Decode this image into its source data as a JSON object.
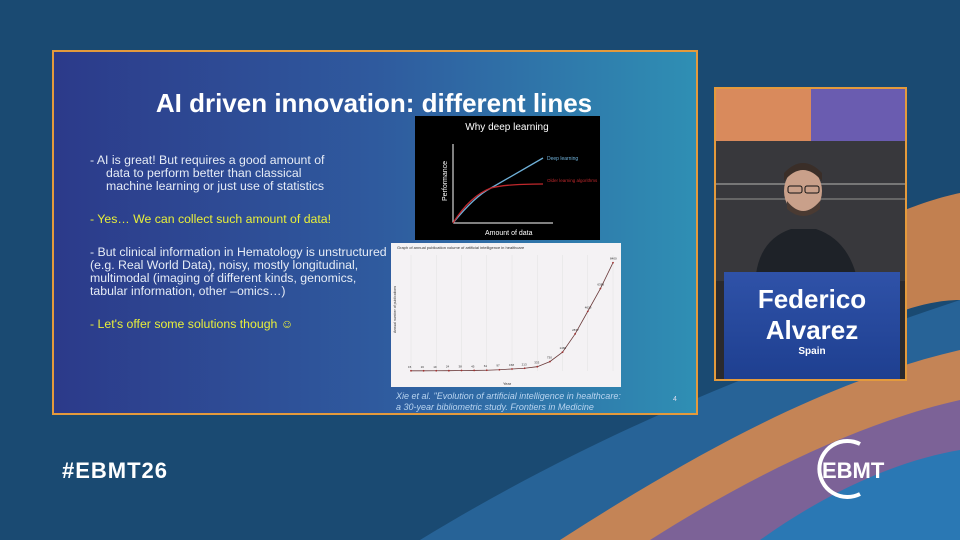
{
  "slide": {
    "title": "AI driven innovation: different lines",
    "bullets": [
      {
        "line1": "- AI is great! But requires a good amount of",
        "line2": "data to perform better than classical",
        "line3": "machine learning or just use of statistics"
      },
      {
        "text": "- Yes… We can collect such amount of data!"
      },
      {
        "text": "- But clinical information in Hematology is unstructured (e.g. Real World Data), noisy, mostly longitudinal, multimodal (imaging of different kinds, genomics, tabular information, other –omics…)"
      },
      {
        "text": "- Let's offer some solutions though ☺"
      }
    ],
    "citation_line1": "Xie et al. \"Evolution of artificial intelligence in healthcare:",
    "citation_line2": "a 30-year bibliometric study. Frontiers in Medicine",
    "page_number": "4"
  },
  "chart_data": [
    {
      "type": "line",
      "title": "Why deep learning",
      "xlabel": "Amount of data",
      "ylabel": "Performance",
      "series": [
        {
          "name": "Deep learning",
          "color": "#6fb0d8"
        },
        {
          "name": "Older learning algorithms",
          "color": "#c0282c"
        }
      ]
    },
    {
      "type": "line",
      "title": "Graph of annual publication volume of artificial intelligence in healthcare",
      "xlabel": "Year",
      "ylabel": "Annual number of publications",
      "values": [
        15,
        16,
        19,
        24,
        38,
        45,
        61,
        97,
        158,
        213,
        333,
        730,
        1460,
        2877,
        4626,
        6389,
        8400
      ],
      "ylim": [
        0,
        9000
      ]
    }
  ],
  "speaker": {
    "name_line1": "Federico",
    "name_line2": "Alvarez",
    "country": "Spain"
  },
  "footer": {
    "hashtag": "#EBMT26",
    "logo_text": "EBMT"
  },
  "colors": {
    "frame": "#e49a3c",
    "background": "#1a4a72",
    "highlight_text": "#e8ef3a"
  }
}
